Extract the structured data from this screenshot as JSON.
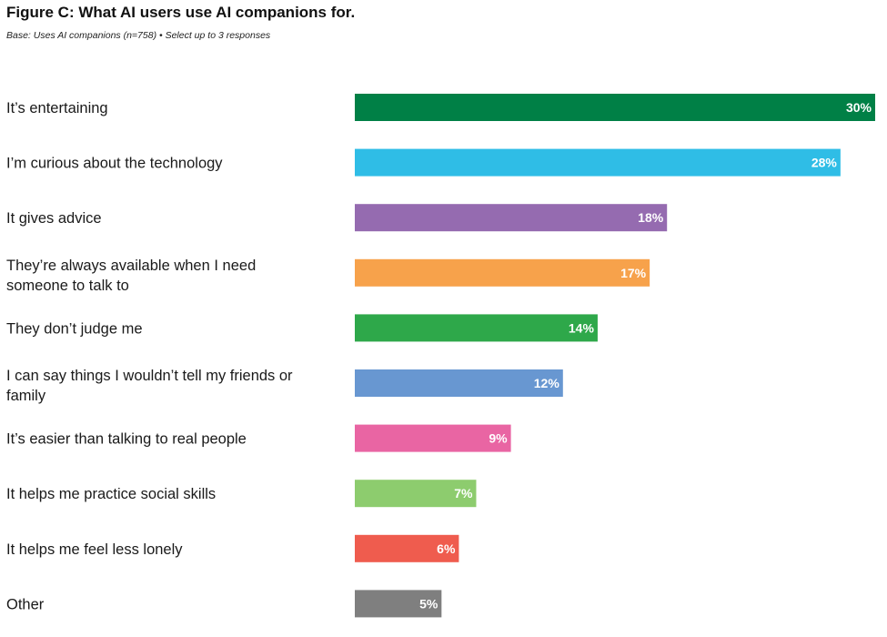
{
  "title": "Figure C: What AI users use AI companions for.",
  "subtitle": "Base: Uses AI companions (n=758) • Select up to 3 responses",
  "chart_data": {
    "type": "bar",
    "orientation": "horizontal",
    "title": "Figure C: What AI users use AI companions for.",
    "subtitle": "Base: Uses AI companions (n=758) • Select up to 3 responses",
    "xlabel": "",
    "ylabel": "",
    "xlim": [
      0,
      30
    ],
    "grid": false,
    "legend": "none",
    "categories": [
      [
        "It’s entertaining"
      ],
      [
        "I’m curious about the technology"
      ],
      [
        "It gives advice"
      ],
      [
        "They’re always available when I need",
        "someone to talk to"
      ],
      [
        "They don’t judge me"
      ],
      [
        "I can say things I wouldn’t tell my friends or",
        "family"
      ],
      [
        "It’s easier than talking to real people"
      ],
      [
        "It helps me practice social skills"
      ],
      [
        "It helps me feel less lonely"
      ],
      [
        "Other"
      ]
    ],
    "values": [
      30,
      28,
      18,
      17,
      14,
      12,
      9,
      7,
      6,
      5
    ],
    "value_labels": [
      "30%",
      "28%",
      "18%",
      "17%",
      "14%",
      "12%",
      "9%",
      "7%",
      "6%",
      "5%"
    ],
    "colors": [
      "#008046",
      "#2fbde6",
      "#956bb0",
      "#f7a24b",
      "#2ea84a",
      "#6897d1",
      "#e965a3",
      "#8dcc6e",
      "#ef5c4e",
      "#7f7f7f"
    ]
  }
}
